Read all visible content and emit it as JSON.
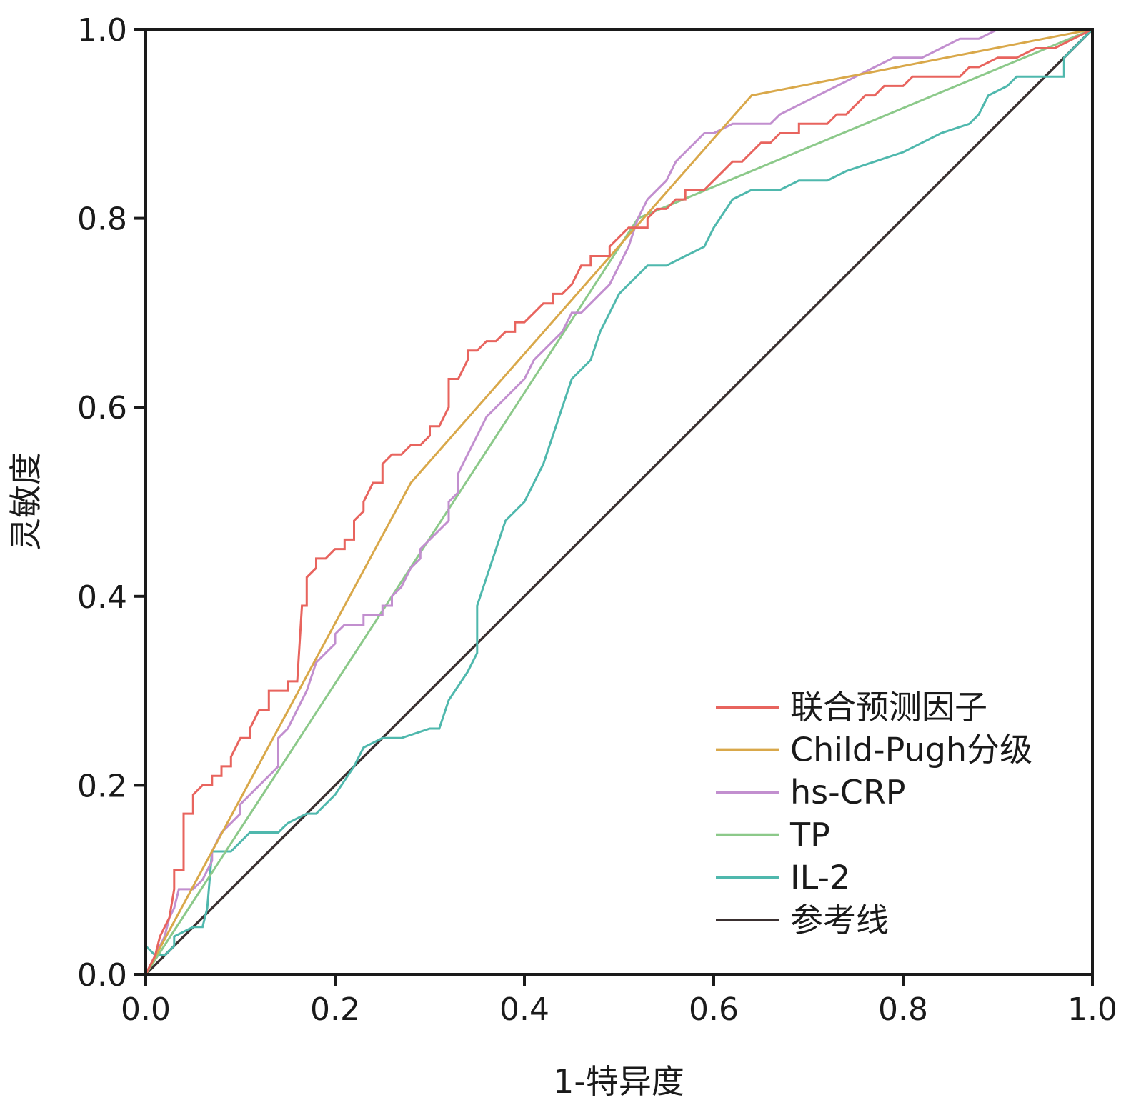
{
  "chart_data": {
    "type": "line",
    "title": "",
    "xlabel": "1-特异度",
    "ylabel": "灵敏度",
    "xlim": [
      0,
      1
    ],
    "ylim": [
      0,
      1
    ],
    "xticks": [
      0.0,
      0.2,
      0.4,
      0.6,
      0.8,
      1.0
    ],
    "yticks": [
      0.0,
      0.2,
      0.4,
      0.6,
      0.8,
      1.0
    ],
    "xtick_labels": [
      "0.0",
      "0.2",
      "0.4",
      "0.6",
      "0.8",
      "1.0"
    ],
    "ytick_labels": [
      "0.0",
      "0.2",
      "0.4",
      "0.6",
      "0.8",
      "1.0"
    ],
    "grid": false,
    "legend_position": "bottom-right",
    "series": [
      {
        "name": "联合预测因子",
        "color": "#e8645e",
        "points": [
          [
            0,
            0
          ],
          [
            0.005,
            0.01
          ],
          [
            0.01,
            0.02
          ],
          [
            0.015,
            0.04
          ],
          [
            0.02,
            0.05
          ],
          [
            0.025,
            0.06
          ],
          [
            0.03,
            0.09
          ],
          [
            0.03,
            0.11
          ],
          [
            0.04,
            0.11
          ],
          [
            0.04,
            0.13
          ],
          [
            0.04,
            0.17
          ],
          [
            0.05,
            0.17
          ],
          [
            0.05,
            0.19
          ],
          [
            0.06,
            0.2
          ],
          [
            0.07,
            0.2
          ],
          [
            0.07,
            0.21
          ],
          [
            0.08,
            0.21
          ],
          [
            0.08,
            0.22
          ],
          [
            0.09,
            0.22
          ],
          [
            0.09,
            0.23
          ],
          [
            0.1,
            0.25
          ],
          [
            0.11,
            0.25
          ],
          [
            0.11,
            0.26
          ],
          [
            0.12,
            0.28
          ],
          [
            0.13,
            0.28
          ],
          [
            0.13,
            0.3
          ],
          [
            0.15,
            0.3
          ],
          [
            0.15,
            0.31
          ],
          [
            0.16,
            0.31
          ],
          [
            0.165,
            0.39
          ],
          [
            0.17,
            0.39
          ],
          [
            0.17,
            0.42
          ],
          [
            0.18,
            0.43
          ],
          [
            0.18,
            0.44
          ],
          [
            0.19,
            0.44
          ],
          [
            0.2,
            0.45
          ],
          [
            0.21,
            0.45
          ],
          [
            0.21,
            0.46
          ],
          [
            0.22,
            0.46
          ],
          [
            0.22,
            0.48
          ],
          [
            0.23,
            0.49
          ],
          [
            0.23,
            0.5
          ],
          [
            0.24,
            0.52
          ],
          [
            0.25,
            0.52
          ],
          [
            0.25,
            0.54
          ],
          [
            0.26,
            0.55
          ],
          [
            0.27,
            0.55
          ],
          [
            0.28,
            0.56
          ],
          [
            0.29,
            0.56
          ],
          [
            0.3,
            0.57
          ],
          [
            0.3,
            0.58
          ],
          [
            0.31,
            0.58
          ],
          [
            0.32,
            0.6
          ],
          [
            0.32,
            0.63
          ],
          [
            0.33,
            0.63
          ],
          [
            0.34,
            0.65
          ],
          [
            0.34,
            0.66
          ],
          [
            0.35,
            0.66
          ],
          [
            0.36,
            0.67
          ],
          [
            0.37,
            0.67
          ],
          [
            0.38,
            0.68
          ],
          [
            0.39,
            0.68
          ],
          [
            0.39,
            0.69
          ],
          [
            0.4,
            0.69
          ],
          [
            0.41,
            0.7
          ],
          [
            0.42,
            0.71
          ],
          [
            0.43,
            0.71
          ],
          [
            0.43,
            0.72
          ],
          [
            0.44,
            0.72
          ],
          [
            0.45,
            0.73
          ],
          [
            0.46,
            0.75
          ],
          [
            0.47,
            0.75
          ],
          [
            0.47,
            0.76
          ],
          [
            0.48,
            0.76
          ],
          [
            0.49,
            0.76
          ],
          [
            0.49,
            0.77
          ],
          [
            0.5,
            0.78
          ],
          [
            0.51,
            0.79
          ],
          [
            0.53,
            0.79
          ],
          [
            0.53,
            0.8
          ],
          [
            0.54,
            0.81
          ],
          [
            0.55,
            0.81
          ],
          [
            0.56,
            0.82
          ],
          [
            0.57,
            0.82
          ],
          [
            0.57,
            0.83
          ],
          [
            0.58,
            0.83
          ],
          [
            0.59,
            0.83
          ],
          [
            0.6,
            0.84
          ],
          [
            0.61,
            0.85
          ],
          [
            0.62,
            0.86
          ],
          [
            0.63,
            0.86
          ],
          [
            0.64,
            0.87
          ],
          [
            0.65,
            0.88
          ],
          [
            0.66,
            0.88
          ],
          [
            0.67,
            0.89
          ],
          [
            0.69,
            0.89
          ],
          [
            0.69,
            0.9
          ],
          [
            0.7,
            0.9
          ],
          [
            0.71,
            0.9
          ],
          [
            0.72,
            0.9
          ],
          [
            0.73,
            0.91
          ],
          [
            0.74,
            0.91
          ],
          [
            0.75,
            0.92
          ],
          [
            0.76,
            0.93
          ],
          [
            0.77,
            0.93
          ],
          [
            0.78,
            0.94
          ],
          [
            0.79,
            0.94
          ],
          [
            0.8,
            0.94
          ],
          [
            0.81,
            0.95
          ],
          [
            0.83,
            0.95
          ],
          [
            0.84,
            0.95
          ],
          [
            0.86,
            0.95
          ],
          [
            0.87,
            0.96
          ],
          [
            0.88,
            0.96
          ],
          [
            0.9,
            0.97
          ],
          [
            0.92,
            0.97
          ],
          [
            0.94,
            0.98
          ],
          [
            0.96,
            0.98
          ],
          [
            0.98,
            0.99
          ],
          [
            1,
            1
          ]
        ]
      },
      {
        "name": "Child-Pugh分级",
        "color": "#d9a84a",
        "points": [
          [
            0,
            0
          ],
          [
            0.28,
            0.52
          ],
          [
            0.64,
            0.93
          ],
          [
            1,
            1
          ]
        ]
      },
      {
        "name": "hs-CRP",
        "color": "#c28fcf",
        "points": [
          [
            0,
            0
          ],
          [
            0.01,
            0.02
          ],
          [
            0.02,
            0.04
          ],
          [
            0.025,
            0.06
          ],
          [
            0.03,
            0.07
          ],
          [
            0.035,
            0.09
          ],
          [
            0.05,
            0.09
          ],
          [
            0.06,
            0.1
          ],
          [
            0.07,
            0.12
          ],
          [
            0.07,
            0.13
          ],
          [
            0.08,
            0.15
          ],
          [
            0.09,
            0.16
          ],
          [
            0.1,
            0.17
          ],
          [
            0.1,
            0.18
          ],
          [
            0.11,
            0.19
          ],
          [
            0.12,
            0.2
          ],
          [
            0.13,
            0.21
          ],
          [
            0.14,
            0.22
          ],
          [
            0.14,
            0.25
          ],
          [
            0.15,
            0.26
          ],
          [
            0.16,
            0.28
          ],
          [
            0.17,
            0.3
          ],
          [
            0.18,
            0.33
          ],
          [
            0.19,
            0.34
          ],
          [
            0.2,
            0.35
          ],
          [
            0.2,
            0.36
          ],
          [
            0.21,
            0.37
          ],
          [
            0.23,
            0.37
          ],
          [
            0.23,
            0.38
          ],
          [
            0.25,
            0.38
          ],
          [
            0.25,
            0.39
          ],
          [
            0.26,
            0.39
          ],
          [
            0.26,
            0.4
          ],
          [
            0.27,
            0.41
          ],
          [
            0.28,
            0.43
          ],
          [
            0.29,
            0.44
          ],
          [
            0.29,
            0.45
          ],
          [
            0.3,
            0.46
          ],
          [
            0.31,
            0.47
          ],
          [
            0.32,
            0.48
          ],
          [
            0.32,
            0.5
          ],
          [
            0.33,
            0.51
          ],
          [
            0.33,
            0.53
          ],
          [
            0.34,
            0.55
          ],
          [
            0.35,
            0.57
          ],
          [
            0.36,
            0.59
          ],
          [
            0.37,
            0.6
          ],
          [
            0.38,
            0.61
          ],
          [
            0.39,
            0.62
          ],
          [
            0.4,
            0.63
          ],
          [
            0.41,
            0.65
          ],
          [
            0.42,
            0.66
          ],
          [
            0.43,
            0.67
          ],
          [
            0.44,
            0.68
          ],
          [
            0.45,
            0.7
          ],
          [
            0.46,
            0.7
          ],
          [
            0.47,
            0.71
          ],
          [
            0.48,
            0.72
          ],
          [
            0.49,
            0.73
          ],
          [
            0.5,
            0.75
          ],
          [
            0.51,
            0.77
          ],
          [
            0.52,
            0.8
          ],
          [
            0.53,
            0.82
          ],
          [
            0.54,
            0.83
          ],
          [
            0.55,
            0.84
          ],
          [
            0.56,
            0.86
          ],
          [
            0.57,
            0.87
          ],
          [
            0.58,
            0.88
          ],
          [
            0.59,
            0.89
          ],
          [
            0.6,
            0.89
          ],
          [
            0.62,
            0.9
          ],
          [
            0.64,
            0.9
          ],
          [
            0.66,
            0.9
          ],
          [
            0.67,
            0.91
          ],
          [
            0.69,
            0.92
          ],
          [
            0.71,
            0.93
          ],
          [
            0.73,
            0.94
          ],
          [
            0.75,
            0.95
          ],
          [
            0.77,
            0.96
          ],
          [
            0.79,
            0.97
          ],
          [
            0.82,
            0.97
          ],
          [
            0.84,
            0.98
          ],
          [
            0.86,
            0.99
          ],
          [
            0.88,
            0.99
          ],
          [
            0.9,
            1
          ],
          [
            0.95,
            1
          ],
          [
            1,
            1
          ]
        ]
      },
      {
        "name": "TP",
        "color": "#8cc98a",
        "points": [
          [
            0,
            0
          ],
          [
            0.52,
            0.8
          ],
          [
            1,
            1
          ]
        ]
      },
      {
        "name": "IL-2",
        "color": "#4fb8ad",
        "points": [
          [
            0,
            0
          ],
          [
            0,
            0.03
          ],
          [
            0.01,
            0.02
          ],
          [
            0.02,
            0.02
          ],
          [
            0.03,
            0.03
          ],
          [
            0.03,
            0.04
          ],
          [
            0.05,
            0.05
          ],
          [
            0.06,
            0.05
          ],
          [
            0.065,
            0.07
          ],
          [
            0.07,
            0.13
          ],
          [
            0.09,
            0.13
          ],
          [
            0.1,
            0.14
          ],
          [
            0.11,
            0.15
          ],
          [
            0.14,
            0.15
          ],
          [
            0.15,
            0.16
          ],
          [
            0.17,
            0.17
          ],
          [
            0.18,
            0.17
          ],
          [
            0.2,
            0.19
          ],
          [
            0.22,
            0.22
          ],
          [
            0.23,
            0.24
          ],
          [
            0.25,
            0.25
          ],
          [
            0.27,
            0.25
          ],
          [
            0.3,
            0.26
          ],
          [
            0.31,
            0.26
          ],
          [
            0.32,
            0.29
          ],
          [
            0.34,
            0.32
          ],
          [
            0.35,
            0.34
          ],
          [
            0.35,
            0.39
          ],
          [
            0.36,
            0.42
          ],
          [
            0.37,
            0.45
          ],
          [
            0.38,
            0.48
          ],
          [
            0.39,
            0.49
          ],
          [
            0.4,
            0.5
          ],
          [
            0.41,
            0.52
          ],
          [
            0.42,
            0.54
          ],
          [
            0.43,
            0.57
          ],
          [
            0.44,
            0.6
          ],
          [
            0.45,
            0.63
          ],
          [
            0.46,
            0.64
          ],
          [
            0.47,
            0.65
          ],
          [
            0.48,
            0.68
          ],
          [
            0.49,
            0.7
          ],
          [
            0.5,
            0.72
          ],
          [
            0.51,
            0.73
          ],
          [
            0.52,
            0.74
          ],
          [
            0.53,
            0.75
          ],
          [
            0.55,
            0.75
          ],
          [
            0.57,
            0.76
          ],
          [
            0.59,
            0.77
          ],
          [
            0.6,
            0.79
          ],
          [
            0.62,
            0.82
          ],
          [
            0.64,
            0.83
          ],
          [
            0.67,
            0.83
          ],
          [
            0.69,
            0.84
          ],
          [
            0.72,
            0.84
          ],
          [
            0.74,
            0.85
          ],
          [
            0.77,
            0.86
          ],
          [
            0.8,
            0.87
          ],
          [
            0.82,
            0.88
          ],
          [
            0.84,
            0.89
          ],
          [
            0.87,
            0.9
          ],
          [
            0.88,
            0.91
          ],
          [
            0.89,
            0.93
          ],
          [
            0.91,
            0.94
          ],
          [
            0.92,
            0.95
          ],
          [
            0.95,
            0.95
          ],
          [
            0.97,
            0.95
          ],
          [
            0.97,
            0.97
          ],
          [
            1,
            1
          ]
        ]
      },
      {
        "name": "参考线",
        "color": "#3a3030",
        "points": [
          [
            0,
            0
          ],
          [
            1,
            1
          ]
        ]
      }
    ]
  }
}
